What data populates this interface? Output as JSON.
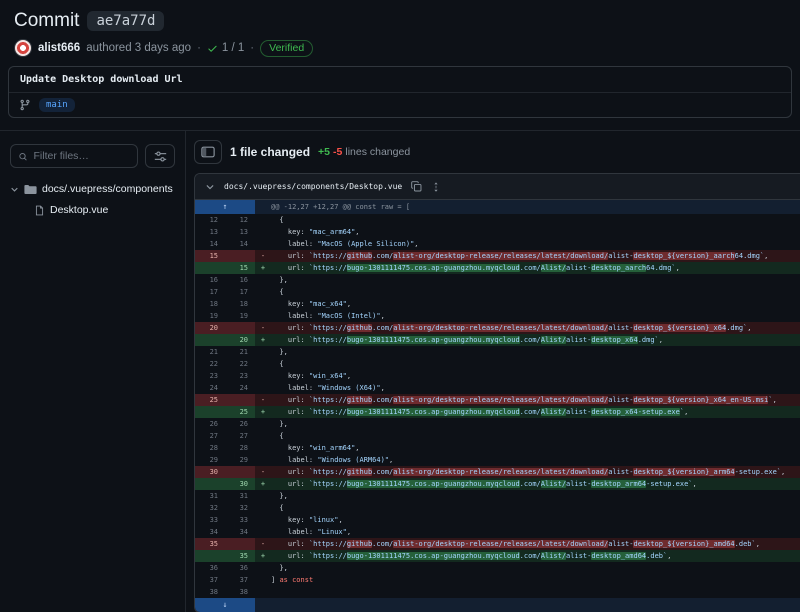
{
  "colors": {
    "accent_blue": "#58a6ff",
    "added_green": "#3fb950",
    "removed_red": "#f85149",
    "verified_green": "#3fb950"
  },
  "icons": {
    "expand_up": "↑",
    "expand_down": "↓",
    "separator": "·"
  },
  "header": {
    "title": "Commit",
    "sha": "ae7a77d",
    "author": "alist666",
    "authored_text": "authored 3 days ago",
    "checks_text": "1 / 1",
    "verified_label": "Verified",
    "message": "Update Desktop download Url",
    "branch": "main"
  },
  "sidebar": {
    "filter_placeholder": "Filter files…",
    "tree": [
      {
        "type": "folder",
        "label": "docs/.vuepress/components"
      },
      {
        "type": "file",
        "label": "Desktop.vue"
      }
    ]
  },
  "diffbar": {
    "files_changed": "1 file changed",
    "additions": "+5",
    "deletions": "-5",
    "suffix": "lines changed"
  },
  "file": {
    "path": "docs/.vuepress/components/Desktop.vue",
    "hunk": "@@ -12,27 +12,27 @@ const raw = ["
  },
  "code": {
    "lines": [
      {
        "o": "12",
        "n": "12",
        "t": "ctx",
        "s": [
          [
            "pln",
            "  {"
          ]
        ]
      },
      {
        "o": "13",
        "n": "13",
        "t": "ctx",
        "s": [
          [
            "pln",
            "    key: "
          ],
          [
            "str",
            "\"mac_arm64\""
          ],
          [
            "pln",
            ","
          ]
        ]
      },
      {
        "o": "14",
        "n": "14",
        "t": "ctx",
        "s": [
          [
            "pln",
            "    label: "
          ],
          [
            "str",
            "\"MacOS (Apple Silicon)\""
          ],
          [
            "pln",
            ","
          ]
        ]
      },
      {
        "o": "15",
        "n": "",
        "t": "del",
        "s": [
          [
            "pln",
            "    url: "
          ],
          [
            "str",
            "`https://"
          ],
          [
            "hls",
            "github"
          ],
          [
            "str",
            ".com/"
          ],
          [
            "hls",
            "alist-org/desktop-release/releases/latest/download/"
          ],
          [
            "str",
            "alist-"
          ],
          [
            "hls",
            "desktop_${version}_aarch"
          ],
          [
            "str",
            "64.dmg`"
          ],
          [
            "pln",
            ","
          ]
        ]
      },
      {
        "o": "",
        "n": "15",
        "t": "add",
        "s": [
          [
            "pln",
            "    url: "
          ],
          [
            "str",
            "`https://"
          ],
          [
            "hls",
            "bugo-1301111475.cos.ap-guangzhou.myqcloud"
          ],
          [
            "str",
            ".com/"
          ],
          [
            "hls",
            "Alist/"
          ],
          [
            "str",
            "alist-"
          ],
          [
            "hls",
            "desktop_aarch"
          ],
          [
            "str",
            "64.dmg`"
          ],
          [
            "pln",
            ","
          ]
        ]
      },
      {
        "o": "16",
        "n": "16",
        "t": "ctx",
        "s": [
          [
            "pln",
            "  },"
          ]
        ]
      },
      {
        "o": "17",
        "n": "17",
        "t": "ctx",
        "s": [
          [
            "pln",
            "  {"
          ]
        ]
      },
      {
        "o": "18",
        "n": "18",
        "t": "ctx",
        "s": [
          [
            "pln",
            "    key: "
          ],
          [
            "str",
            "\"mac_x64\""
          ],
          [
            "pln",
            ","
          ]
        ]
      },
      {
        "o": "19",
        "n": "19",
        "t": "ctx",
        "s": [
          [
            "pln",
            "    label: "
          ],
          [
            "str",
            "\"MacOS (Intel)\""
          ],
          [
            "pln",
            ","
          ]
        ]
      },
      {
        "o": "20",
        "n": "",
        "t": "del",
        "s": [
          [
            "pln",
            "    url: "
          ],
          [
            "str",
            "`https://"
          ],
          [
            "hls",
            "github"
          ],
          [
            "str",
            ".com/"
          ],
          [
            "hls",
            "alist-org/desktop-release/releases/latest/download/"
          ],
          [
            "str",
            "alist-"
          ],
          [
            "hls",
            "desktop_${version}_x64"
          ],
          [
            "str",
            ".dmg`"
          ],
          [
            "pln",
            ","
          ]
        ]
      },
      {
        "o": "",
        "n": "20",
        "t": "add",
        "s": [
          [
            "pln",
            "    url: "
          ],
          [
            "str",
            "`https://"
          ],
          [
            "hls",
            "bugo-1301111475.cos.ap-guangzhou.myqcloud"
          ],
          [
            "str",
            ".com/"
          ],
          [
            "hls",
            "Alist/"
          ],
          [
            "str",
            "alist-"
          ],
          [
            "hls",
            "desktop_x64"
          ],
          [
            "str",
            ".dmg`"
          ],
          [
            "pln",
            ","
          ]
        ]
      },
      {
        "o": "21",
        "n": "21",
        "t": "ctx",
        "s": [
          [
            "pln",
            "  },"
          ]
        ]
      },
      {
        "o": "22",
        "n": "22",
        "t": "ctx",
        "s": [
          [
            "pln",
            "  {"
          ]
        ]
      },
      {
        "o": "23",
        "n": "23",
        "t": "ctx",
        "s": [
          [
            "pln",
            "    key: "
          ],
          [
            "str",
            "\"win_x64\""
          ],
          [
            "pln",
            ","
          ]
        ]
      },
      {
        "o": "24",
        "n": "24",
        "t": "ctx",
        "s": [
          [
            "pln",
            "    label: "
          ],
          [
            "str",
            "\"Windows (X64)\""
          ],
          [
            "pln",
            ","
          ]
        ]
      },
      {
        "o": "25",
        "n": "",
        "t": "del",
        "s": [
          [
            "pln",
            "    url: "
          ],
          [
            "str",
            "`https://"
          ],
          [
            "hls",
            "github"
          ],
          [
            "str",
            ".com/"
          ],
          [
            "hls",
            "alist-org/desktop-release/releases/latest/download/"
          ],
          [
            "str",
            "alist-"
          ],
          [
            "hls",
            "desktop_${version}_x64_en-US.msi"
          ],
          [
            "str",
            "`"
          ],
          [
            "pln",
            ","
          ]
        ]
      },
      {
        "o": "",
        "n": "25",
        "t": "add",
        "s": [
          [
            "pln",
            "    url: "
          ],
          [
            "str",
            "`https://"
          ],
          [
            "hls",
            "bugo-1301111475.cos.ap-guangzhou.myqcloud"
          ],
          [
            "str",
            ".com/"
          ],
          [
            "hls",
            "Alist/"
          ],
          [
            "str",
            "alist-"
          ],
          [
            "hls",
            "desktop_x64-setup.exe"
          ],
          [
            "str",
            "`"
          ],
          [
            "pln",
            ","
          ]
        ]
      },
      {
        "o": "26",
        "n": "26",
        "t": "ctx",
        "s": [
          [
            "pln",
            "  },"
          ]
        ]
      },
      {
        "o": "27",
        "n": "27",
        "t": "ctx",
        "s": [
          [
            "pln",
            "  {"
          ]
        ]
      },
      {
        "o": "28",
        "n": "28",
        "t": "ctx",
        "s": [
          [
            "pln",
            "    key: "
          ],
          [
            "str",
            "\"win_arm64\""
          ],
          [
            "pln",
            ","
          ]
        ]
      },
      {
        "o": "29",
        "n": "29",
        "t": "ctx",
        "s": [
          [
            "pln",
            "    label: "
          ],
          [
            "str",
            "\"Windows (ARM64)\""
          ],
          [
            "pln",
            ","
          ]
        ]
      },
      {
        "o": "30",
        "n": "",
        "t": "del",
        "s": [
          [
            "pln",
            "    url: "
          ],
          [
            "str",
            "`https://"
          ],
          [
            "hls",
            "github"
          ],
          [
            "str",
            ".com/"
          ],
          [
            "hls",
            "alist-org/desktop-release/releases/latest/download/"
          ],
          [
            "str",
            "alist-"
          ],
          [
            "hls",
            "desktop_${version}_arm64"
          ],
          [
            "str",
            "-setup.exe`"
          ],
          [
            "pln",
            ","
          ]
        ]
      },
      {
        "o": "",
        "n": "30",
        "t": "add",
        "s": [
          [
            "pln",
            "    url: "
          ],
          [
            "str",
            "`https://"
          ],
          [
            "hls",
            "bugo-1301111475.cos.ap-guangzhou.myqcloud"
          ],
          [
            "str",
            ".com/"
          ],
          [
            "hls",
            "Alist/"
          ],
          [
            "str",
            "alist-"
          ],
          [
            "hls",
            "desktop_arm64"
          ],
          [
            "str",
            "-setup.exe`"
          ],
          [
            "pln",
            ","
          ]
        ]
      },
      {
        "o": "31",
        "n": "31",
        "t": "ctx",
        "s": [
          [
            "pln",
            "  },"
          ]
        ]
      },
      {
        "o": "32",
        "n": "32",
        "t": "ctx",
        "s": [
          [
            "pln",
            "  {"
          ]
        ]
      },
      {
        "o": "33",
        "n": "33",
        "t": "ctx",
        "s": [
          [
            "pln",
            "    key: "
          ],
          [
            "str",
            "\"linux\""
          ],
          [
            "pln",
            ","
          ]
        ]
      },
      {
        "o": "34",
        "n": "34",
        "t": "ctx",
        "s": [
          [
            "pln",
            "    label: "
          ],
          [
            "str",
            "\"Linux\""
          ],
          [
            "pln",
            ","
          ]
        ]
      },
      {
        "o": "35",
        "n": "",
        "t": "del",
        "s": [
          [
            "pln",
            "    url: "
          ],
          [
            "str",
            "`https://"
          ],
          [
            "hls",
            "github"
          ],
          [
            "str",
            ".com/"
          ],
          [
            "hls",
            "alist-org/desktop-release/releases/latest/download/"
          ],
          [
            "str",
            "alist-"
          ],
          [
            "hls",
            "desktop_${version}_amd64"
          ],
          [
            "str",
            ".deb`"
          ],
          [
            "pln",
            ","
          ]
        ]
      },
      {
        "o": "",
        "n": "35",
        "t": "add",
        "s": [
          [
            "pln",
            "    url: "
          ],
          [
            "str",
            "`https://"
          ],
          [
            "hls",
            "bugo-1301111475.cos.ap-guangzhou.myqcloud"
          ],
          [
            "str",
            ".com/"
          ],
          [
            "hls",
            "Alist/"
          ],
          [
            "str",
            "alist-"
          ],
          [
            "hls",
            "desktop_amd64"
          ],
          [
            "str",
            ".deb`"
          ],
          [
            "pln",
            ","
          ]
        ]
      },
      {
        "o": "36",
        "n": "36",
        "t": "ctx",
        "s": [
          [
            "pln",
            "  },"
          ]
        ]
      },
      {
        "o": "37",
        "n": "37",
        "t": "ctx",
        "s": [
          [
            "pln",
            "] "
          ],
          [
            "kw",
            "as"
          ],
          [
            "pln",
            " "
          ],
          [
            "kw",
            "const"
          ]
        ]
      },
      {
        "o": "38",
        "n": "38",
        "t": "ctx",
        "s": [
          [
            "pln",
            ""
          ]
        ]
      }
    ]
  }
}
